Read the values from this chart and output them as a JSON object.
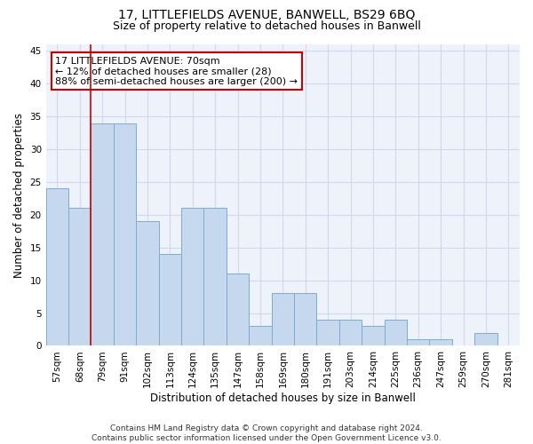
{
  "title": "17, LITTLEFIELDS AVENUE, BANWELL, BS29 6BQ",
  "subtitle": "Size of property relative to detached houses in Banwell",
  "xlabel": "Distribution of detached houses by size in Banwell",
  "ylabel": "Number of detached properties",
  "categories": [
    "57sqm",
    "68sqm",
    "79sqm",
    "91sqm",
    "102sqm",
    "113sqm",
    "124sqm",
    "135sqm",
    "147sqm",
    "158sqm",
    "169sqm",
    "180sqm",
    "191sqm",
    "203sqm",
    "214sqm",
    "225sqm",
    "236sqm",
    "247sqm",
    "259sqm",
    "270sqm",
    "281sqm"
  ],
  "values": [
    24,
    21,
    34,
    34,
    19,
    14,
    21,
    21,
    11,
    3,
    8,
    8,
    4,
    4,
    3,
    4,
    1,
    1,
    0,
    2,
    0
  ],
  "bar_color": "#c5d8ee",
  "bar_edge_color": "#7aadd4",
  "vline_color": "#cc0000",
  "vline_pos": 1.5,
  "annotation_text": "17 LITTLEFIELDS AVENUE: 70sqm\n← 12% of detached houses are smaller (28)\n88% of semi-detached houses are larger (200) →",
  "annotation_box_facecolor": "#ffffff",
  "annotation_box_edgecolor": "#cc0000",
  "ylim": [
    0,
    46
  ],
  "yticks": [
    0,
    5,
    10,
    15,
    20,
    25,
    30,
    35,
    40,
    45
  ],
  "grid_color": "#d0d8ee",
  "background_color": "#eef2fa",
  "footer_text": "Contains HM Land Registry data © Crown copyright and database right 2024.\nContains public sector information licensed under the Open Government Licence v3.0.",
  "title_fontsize": 10,
  "subtitle_fontsize": 9,
  "xlabel_fontsize": 8.5,
  "ylabel_fontsize": 8.5,
  "tick_fontsize": 7.5,
  "annotation_fontsize": 8,
  "footer_fontsize": 6.5
}
